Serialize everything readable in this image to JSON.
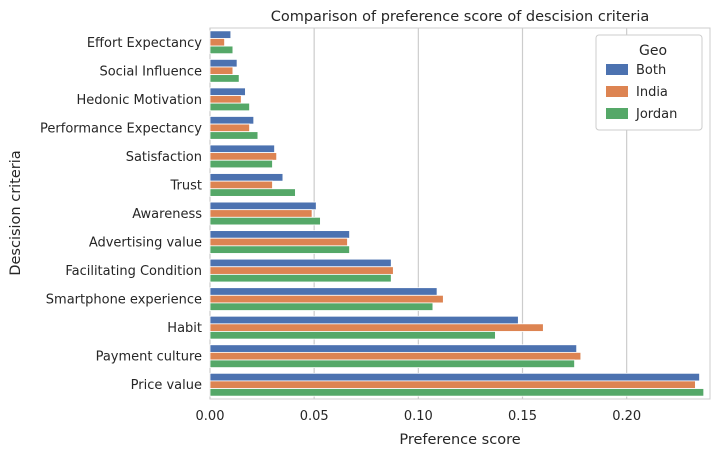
{
  "chart_data": {
    "type": "bar",
    "orientation": "horizontal",
    "title": "Comparison of preference score of descision criteria",
    "xlabel": "Preference score",
    "ylabel": "Descision criteria",
    "xlim": [
      0.0,
      0.24
    ],
    "x_ticks": [
      "0.00",
      "0.05",
      "0.10",
      "0.15",
      "0.20"
    ],
    "grid": "vertical",
    "legend": {
      "title": "Geo",
      "position": "top-right"
    },
    "categories": [
      "Effort Expectancy",
      "Social Influence",
      "Hedonic Motivation",
      "Performance Expectancy",
      "Satisfaction",
      "Trust",
      "Awareness",
      "Advertising value",
      "Facilitating Condition",
      "Smartphone experience",
      "Habit",
      "Payment culture",
      "Price value"
    ],
    "series": [
      {
        "name": "Both",
        "color": "#4c72b0",
        "values": [
          0.01,
          0.013,
          0.017,
          0.021,
          0.031,
          0.035,
          0.051,
          0.067,
          0.087,
          0.109,
          0.148,
          0.176,
          0.235
        ]
      },
      {
        "name": "India",
        "color": "#dd8452",
        "values": [
          0.007,
          0.011,
          0.015,
          0.019,
          0.032,
          0.03,
          0.049,
          0.066,
          0.088,
          0.112,
          0.16,
          0.178,
          0.233
        ]
      },
      {
        "name": "Jordan",
        "color": "#55a868",
        "values": [
          0.011,
          0.014,
          0.019,
          0.023,
          0.03,
          0.041,
          0.053,
          0.067,
          0.087,
          0.107,
          0.137,
          0.175,
          0.237
        ]
      }
    ]
  }
}
